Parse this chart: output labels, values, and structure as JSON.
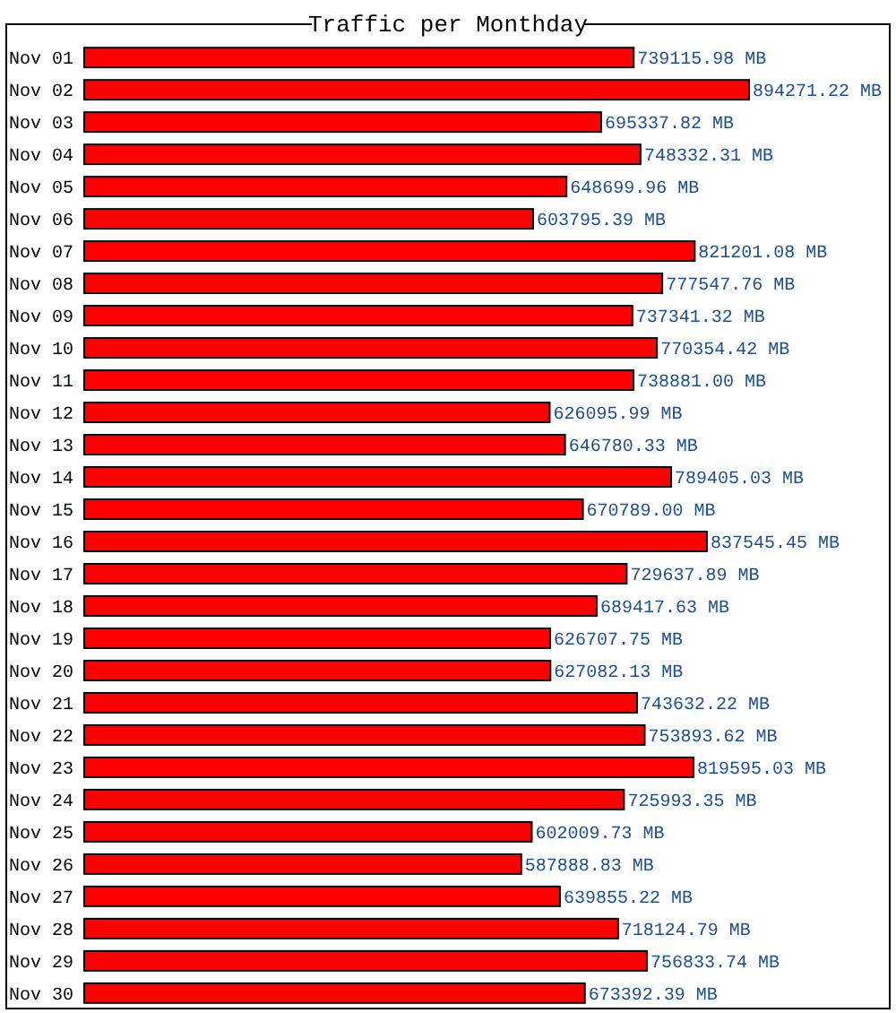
{
  "chart_data": {
    "type": "bar",
    "orientation": "horizontal",
    "title": "Traffic per Monthday",
    "categories": [
      "Nov 01",
      "Nov 02",
      "Nov 03",
      "Nov 04",
      "Nov 05",
      "Nov 06",
      "Nov 07",
      "Nov 08",
      "Nov 09",
      "Nov 10",
      "Nov 11",
      "Nov 12",
      "Nov 13",
      "Nov 14",
      "Nov 15",
      "Nov 16",
      "Nov 17",
      "Nov 18",
      "Nov 19",
      "Nov 20",
      "Nov 21",
      "Nov 22",
      "Nov 23",
      "Nov 24",
      "Nov 25",
      "Nov 26",
      "Nov 27",
      "Nov 28",
      "Nov 29",
      "Nov 30"
    ],
    "values": [
      739115.98,
      894271.22,
      695337.82,
      748332.31,
      648699.96,
      603795.39,
      821201.08,
      777547.76,
      737341.32,
      770354.42,
      738881.0,
      626095.99,
      646780.33,
      789405.03,
      670789.0,
      837545.45,
      729637.89,
      689417.63,
      626707.75,
      627082.13,
      743632.22,
      753893.62,
      819595.03,
      725993.35,
      602009.73,
      587888.83,
      639855.22,
      718124.79,
      756833.74,
      673392.39
    ],
    "value_labels": [
      "739115.98 MB",
      "894271.22 MB",
      "695337.82 MB",
      "748332.31 MB",
      "648699.96 MB",
      "603795.39 MB",
      "821201.08 MB",
      "777547.76 MB",
      "737341.32 MB",
      "770354.42 MB",
      "738881.00 MB",
      "626095.99 MB",
      "646780.33 MB",
      "789405.03 MB",
      "670789.00 MB",
      "837545.45 MB",
      "729637.89 MB",
      "689417.63 MB",
      "626707.75 MB",
      "627082.13 MB",
      "743632.22 MB",
      "753893.62 MB",
      "819595.03 MB",
      "725993.35 MB",
      "602009.73 MB",
      "587888.83 MB",
      "639855.22 MB",
      "718124.79 MB",
      "756833.74 MB",
      "673392.39 MB"
    ],
    "color": "#ff0000"
  }
}
